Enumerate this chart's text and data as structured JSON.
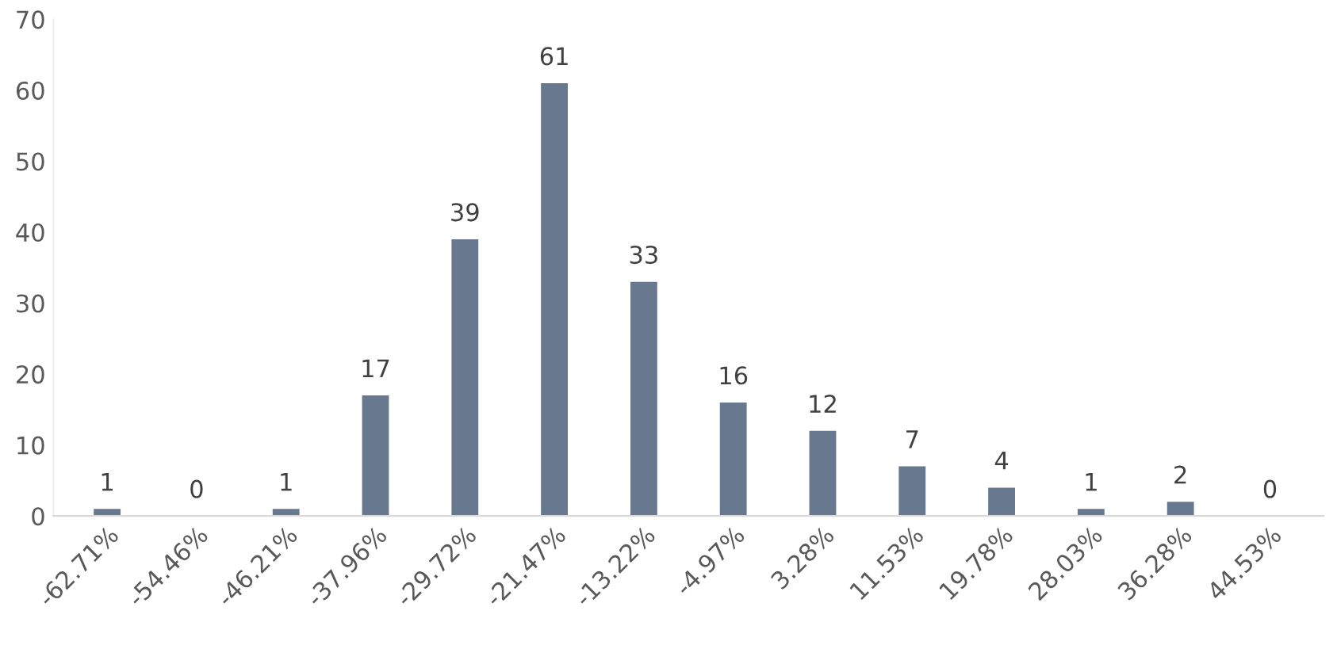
{
  "chart_data": {
    "type": "bar",
    "categories": [
      "-62.71%",
      "-54.46%",
      "-46.21%",
      "-37.96%",
      "-29.72%",
      "-21.47%",
      "-13.22%",
      "-4.97%",
      "3.28%",
      "11.53%",
      "19.78%",
      "28.03%",
      "36.28%",
      "44.53%"
    ],
    "values": [
      1,
      0,
      1,
      17,
      39,
      61,
      33,
      16,
      12,
      7,
      4,
      1,
      2,
      0
    ],
    "color": "#67788f",
    "ylim": [
      0,
      70
    ],
    "yticks": [
      0,
      10,
      20,
      30,
      40,
      50,
      60,
      70
    ],
    "data_labels": true,
    "grid": false,
    "legend": false
  }
}
